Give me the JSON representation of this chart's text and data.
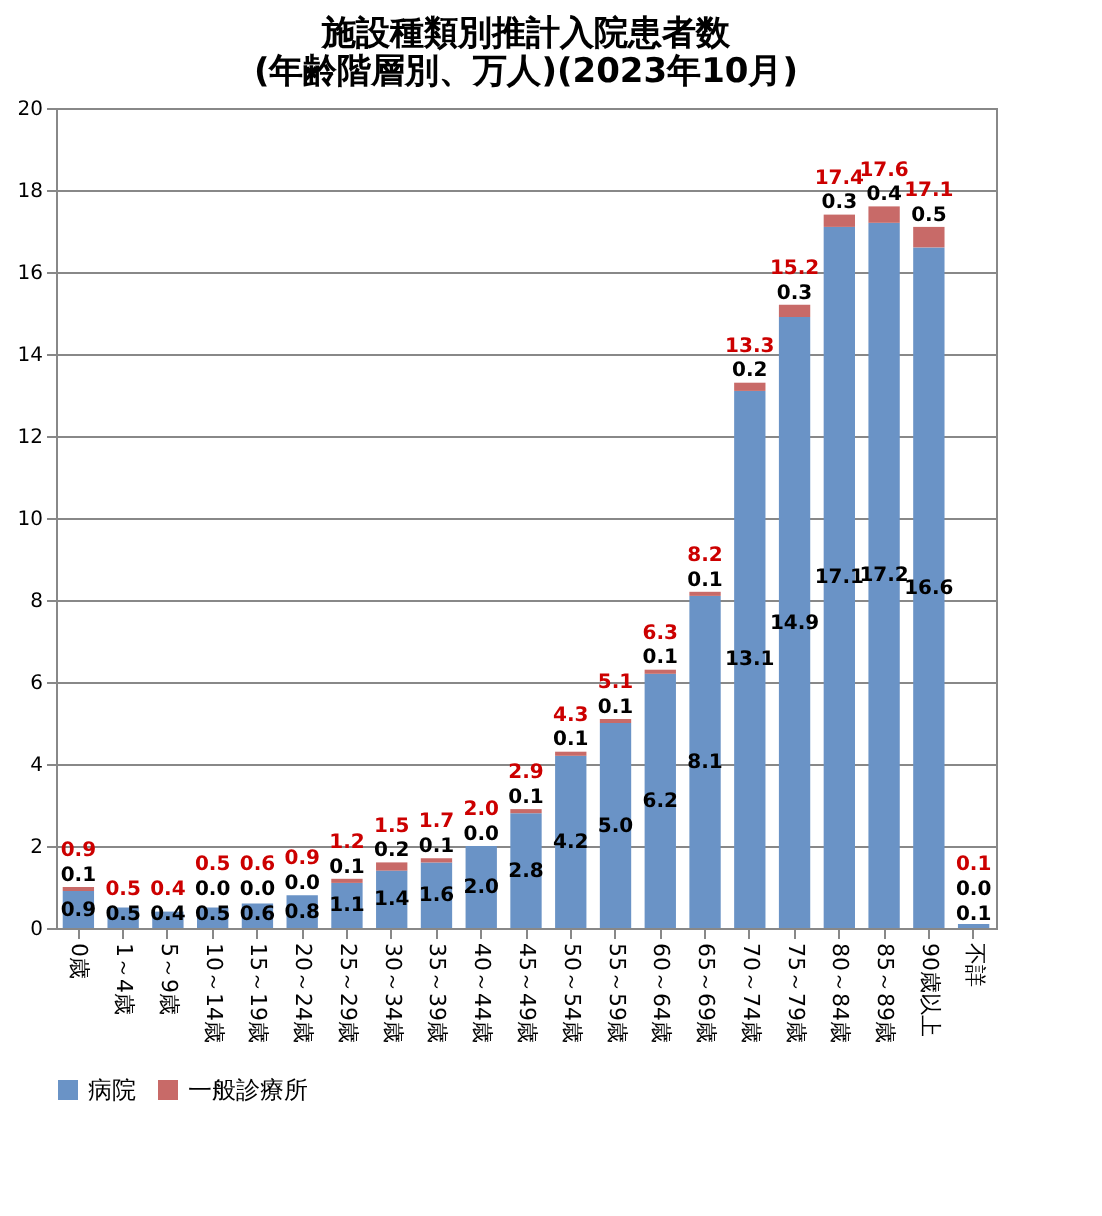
{
  "chart_data": {
    "type": "bar",
    "title": [
      "施設種類別推計入院患者数",
      "(年齢階層別、万人)(2023年10月)"
    ],
    "categories": [
      "0歳",
      "1～4歳",
      "5～9歳",
      "10～14歳",
      "15～19歳",
      "20～24歳",
      "25～29歳",
      "30～34歳",
      "35～39歳",
      "40～44歳",
      "45～49歳",
      "50～54歳",
      "55～59歳",
      "60～64歳",
      "65～69歳",
      "70～74歳",
      "75～79歳",
      "80～84歳",
      "85～89歳",
      "90歳以上",
      "不詳"
    ],
    "series": [
      {
        "name": "病院",
        "color": "#6a93c6",
        "values": [
          0.9,
          0.5,
          0.4,
          0.5,
          0.6,
          0.8,
          1.1,
          1.4,
          1.6,
          2.0,
          2.8,
          4.2,
          5.0,
          6.2,
          8.1,
          13.1,
          14.9,
          17.1,
          17.2,
          16.6,
          0.1
        ],
        "value_labels": [
          "0.9",
          "0.5",
          "0.4",
          "0.5",
          "0.6",
          "0.8",
          "1.1",
          "1.4",
          "1.6",
          "2.0",
          "2.8",
          "4.2",
          "5.0",
          "6.2",
          "8.1",
          "13.1",
          "14.9",
          "17.1",
          "17.2",
          "16.6",
          "0.1"
        ]
      },
      {
        "name": "一般診療所",
        "color": "#c86a68",
        "values": [
          0.1,
          null,
          null,
          0.0,
          0.0,
          0.0,
          0.1,
          0.2,
          0.1,
          0.0,
          0.1,
          0.1,
          0.1,
          0.1,
          0.1,
          0.2,
          0.3,
          0.3,
          0.4,
          0.5,
          0.0
        ],
        "value_labels": [
          "0.1",
          null,
          null,
          "0.0",
          "0.0",
          "0.0",
          "0.1",
          "0.2",
          "0.1",
          "0.0",
          "0.1",
          "0.1",
          "0.1",
          "0.1",
          "0.1",
          "0.2",
          "0.3",
          "0.3",
          "0.4",
          "0.5",
          "0.0"
        ]
      }
    ],
    "totals": [
      "0.9",
      "0.5",
      "0.4",
      "0.5",
      "0.6",
      "0.9",
      "1.2",
      "1.5",
      "1.7",
      "2.0",
      "2.9",
      "4.3",
      "5.1",
      "6.3",
      "8.2",
      "13.3",
      "15.2",
      "17.4",
      "17.6",
      "17.1",
      "0.1"
    ],
    "stacked": true,
    "ylim": [
      0,
      20
    ],
    "yticks": [
      0,
      2,
      4,
      6,
      8,
      10,
      12,
      14,
      16,
      18,
      20
    ],
    "grid": "y",
    "legend": "bottom"
  }
}
